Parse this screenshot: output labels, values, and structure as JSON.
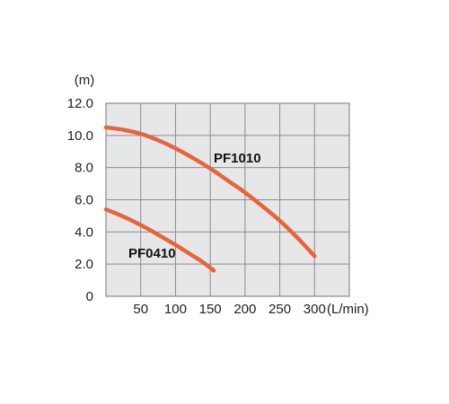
{
  "chart_data": {
    "type": "line",
    "y_unit_label": "(m)",
    "x_unit_label": "(L/min)",
    "x_tick_labels": [
      "50",
      "100",
      "150",
      "200",
      "250",
      "300"
    ],
    "y_tick_labels": [
      "0",
      "2.0",
      "4.0",
      "6.0",
      "8.0",
      "10.0",
      "12.0"
    ],
    "xlim": [
      0,
      350
    ],
    "ylim": [
      0,
      12
    ],
    "grid": true,
    "plot_background": "#e6e7e8",
    "grid_color": "#8a8c8e",
    "series": [
      {
        "name": "PF1010",
        "color": "#e8643a",
        "points": [
          [
            0,
            10.5
          ],
          [
            25,
            10.35
          ],
          [
            50,
            10.1
          ],
          [
            75,
            9.7
          ],
          [
            100,
            9.2
          ],
          [
            125,
            8.6
          ],
          [
            150,
            7.95
          ],
          [
            175,
            7.2
          ],
          [
            200,
            6.45
          ],
          [
            225,
            5.6
          ],
          [
            250,
            4.7
          ],
          [
            275,
            3.65
          ],
          [
            300,
            2.5
          ]
        ]
      },
      {
        "name": "PF0410",
        "color": "#e8643a",
        "points": [
          [
            0,
            5.4
          ],
          [
            20,
            5.05
          ],
          [
            40,
            4.65
          ],
          [
            60,
            4.2
          ],
          [
            80,
            3.7
          ],
          [
            100,
            3.2
          ],
          [
            120,
            2.65
          ],
          [
            140,
            2.1
          ],
          [
            155,
            1.6
          ]
        ]
      }
    ]
  }
}
